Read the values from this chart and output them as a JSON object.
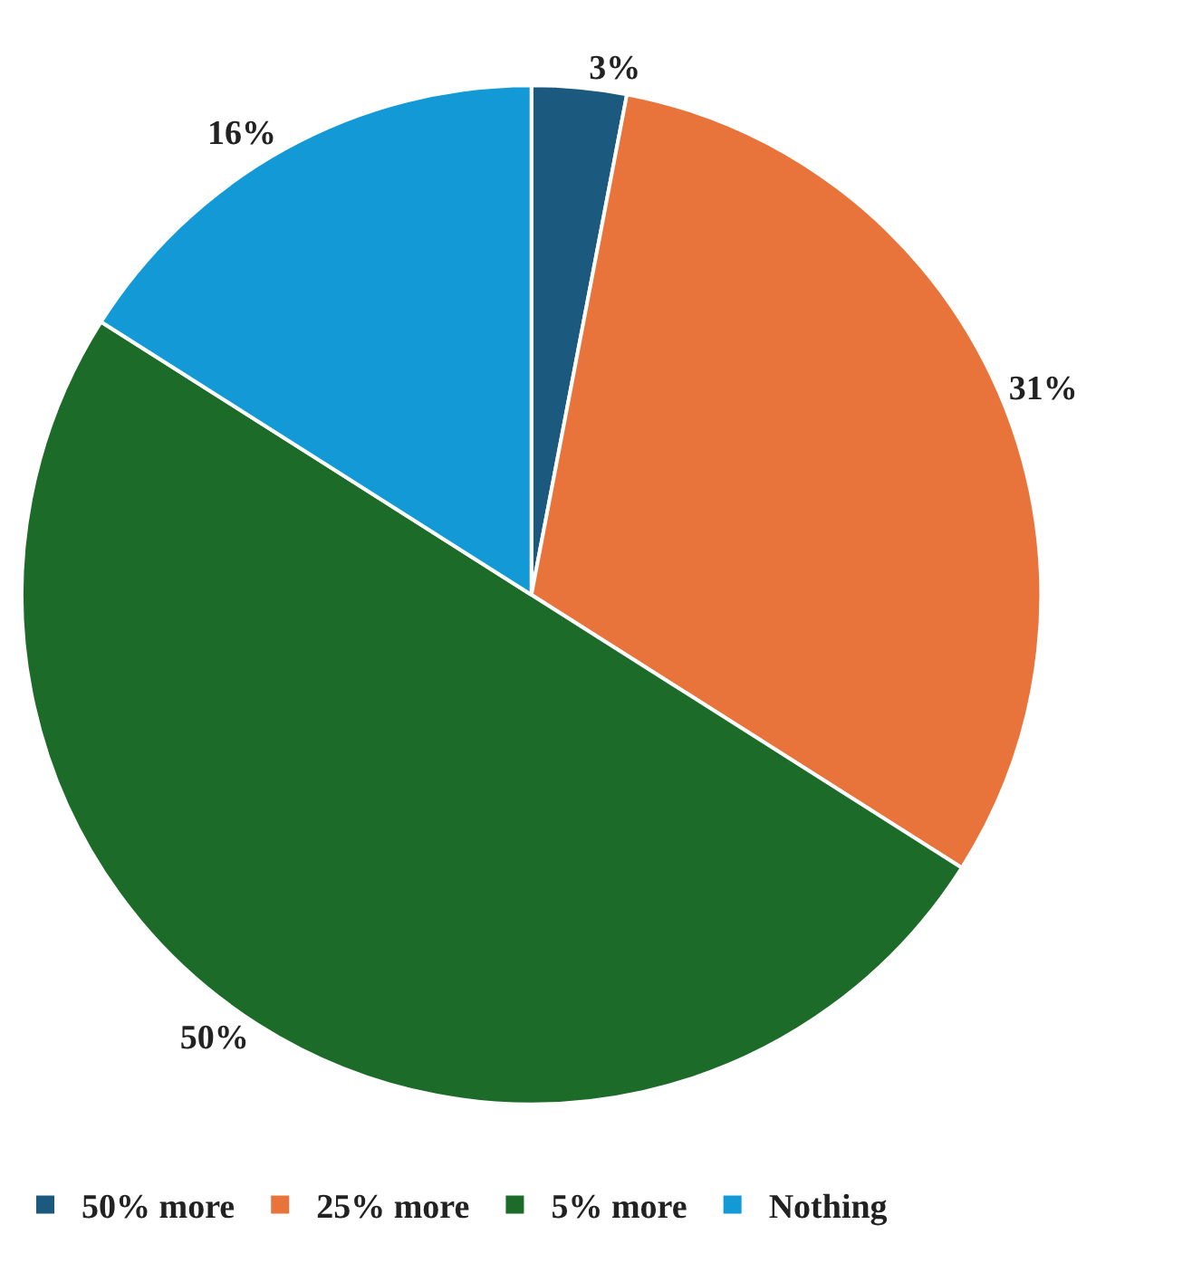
{
  "chart_data": {
    "type": "pie",
    "categories": [
      "50% more",
      "25% more",
      "5% more",
      "Nothing"
    ],
    "values": [
      3,
      31,
      50,
      16
    ],
    "value_labels": [
      "3%",
      "31%",
      "50%",
      "16%"
    ],
    "colors": [
      "#1b5a7e",
      "#e8743b",
      "#1c6b28",
      "#139ad6"
    ],
    "legend": "bottom"
  }
}
